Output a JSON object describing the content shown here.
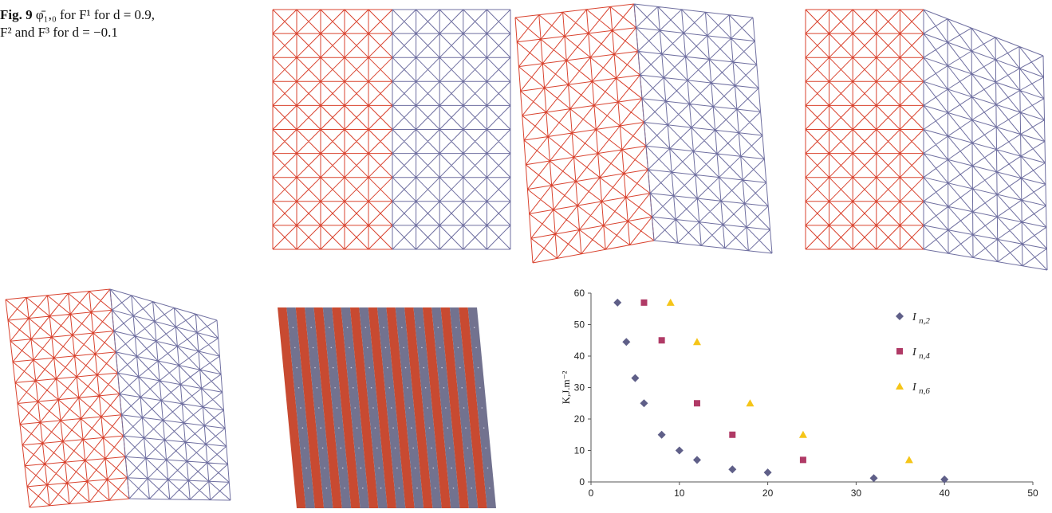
{
  "caption": {
    "label": "Fig. 9",
    "line1": "φ̄₁,₀ for F¹ for d = 0.9,",
    "line2": "F² and F³ for d = −0.1"
  },
  "colors": {
    "red_mesh": "#d9432f",
    "blue_mesh": "#6f6fa0",
    "diamond": "#5f5f88",
    "square": "#b03a66",
    "triangle": "#f5c518"
  },
  "chart_data": {
    "type": "scatter",
    "title": "",
    "xlabel": "",
    "ylabel": "K,J.m⁻²",
    "xlim": [
      0,
      50
    ],
    "ylim": [
      0,
      60
    ],
    "x_ticks": [
      "0",
      "10",
      "20",
      "30",
      "40",
      "50"
    ],
    "y_ticks": [
      "0",
      "10",
      "20",
      "30",
      "40",
      "50",
      "60"
    ],
    "grid": false,
    "legend_position": "right",
    "series": [
      {
        "name": "I n,2",
        "marker": "diamond",
        "points": [
          [
            3,
            57
          ],
          [
            4,
            44.5
          ],
          [
            5,
            33
          ],
          [
            6,
            25
          ],
          [
            8,
            15
          ],
          [
            10,
            10
          ],
          [
            12,
            7
          ],
          [
            16,
            4
          ],
          [
            20,
            3
          ],
          [
            32,
            1.2
          ],
          [
            40,
            0.8
          ]
        ]
      },
      {
        "name": "I n,4",
        "marker": "square",
        "points": [
          [
            6,
            57
          ],
          [
            8,
            45
          ],
          [
            12,
            25
          ],
          [
            16,
            15
          ],
          [
            24,
            7
          ]
        ]
      },
      {
        "name": "I n,6",
        "marker": "triangle",
        "points": [
          [
            9,
            57
          ],
          [
            12,
            44.5
          ],
          [
            18,
            25
          ],
          [
            24,
            15
          ],
          [
            36,
            7
          ]
        ]
      }
    ]
  }
}
